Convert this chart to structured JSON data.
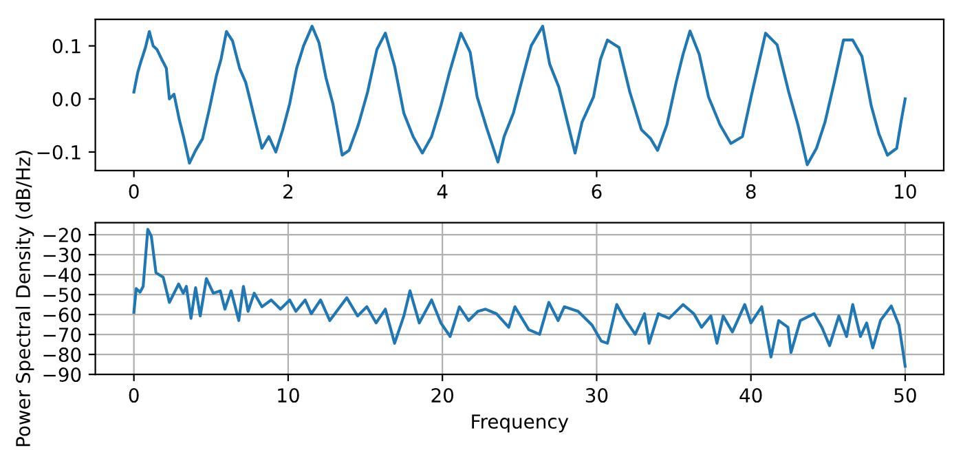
{
  "chart_data": [
    {
      "type": "line",
      "x": [
        0,
        0.05,
        0.09,
        0.15,
        0.2,
        0.25,
        0.3,
        0.36,
        0.42,
        0.46,
        0.52,
        0.59,
        0.65,
        0.72,
        0.8,
        0.89,
        0.98,
        1.07,
        1.13,
        1.2,
        1.28,
        1.37,
        1.45,
        1.51,
        1.57,
        1.66,
        1.75,
        1.84,
        1.93,
        2.02,
        2.11,
        2.2,
        2.31,
        2.4,
        2.49,
        2.58,
        2.7,
        2.79,
        2.91,
        3.03,
        3.15,
        3.26,
        3.38,
        3.5,
        3.62,
        3.74,
        3.86,
        3.98,
        4.09,
        4.24,
        4.36,
        4.45,
        4.57,
        4.72,
        4.8,
        4.92,
        5.04,
        5.15,
        5.3,
        5.39,
        5.51,
        5.63,
        5.72,
        5.81,
        5.96,
        6.05,
        6.14,
        6.29,
        6.43,
        6.58,
        6.7,
        6.79,
        6.91,
        7.03,
        7.12,
        7.21,
        7.33,
        7.45,
        7.6,
        7.74,
        7.89,
        8.01,
        8.1,
        8.19,
        8.34,
        8.49,
        8.61,
        8.73,
        8.85,
        8.96,
        9.08,
        9.2,
        9.32,
        9.44,
        9.56,
        9.66,
        9.77,
        9.89,
        9.95,
        10.0
      ],
      "series": [
        {
          "color": "#1f77b4",
          "values": [
            0.013,
            0.05,
            0.07,
            0.097,
            0.127,
            0.1,
            0.093,
            0.075,
            0.058,
            0.0,
            0.009,
            -0.04,
            -0.075,
            -0.121,
            -0.097,
            -0.075,
            -0.018,
            0.044,
            0.075,
            0.127,
            0.109,
            0.058,
            0.031,
            -0.004,
            -0.04,
            -0.093,
            -0.071,
            -0.1,
            -0.058,
            -0.009,
            0.058,
            0.1,
            0.137,
            0.106,
            0.04,
            -0.009,
            -0.106,
            -0.097,
            -0.049,
            0.013,
            0.093,
            0.124,
            0.062,
            -0.027,
            -0.071,
            -0.102,
            -0.071,
            -0.013,
            0.049,
            0.124,
            0.088,
            0.004,
            -0.053,
            -0.119,
            -0.071,
            -0.027,
            0.04,
            0.1,
            0.137,
            0.066,
            0.022,
            -0.049,
            -0.102,
            -0.044,
            0.004,
            0.075,
            0.111,
            0.097,
            0.013,
            -0.058,
            -0.075,
            -0.097,
            -0.049,
            0.031,
            0.084,
            0.128,
            0.084,
            0.004,
            -0.049,
            -0.084,
            -0.071,
            0.009,
            0.066,
            0.124,
            0.102,
            0.013,
            -0.049,
            -0.124,
            -0.093,
            -0.044,
            0.031,
            0.111,
            0.111,
            0.08,
            -0.013,
            -0.066,
            -0.106,
            -0.093,
            -0.04,
            0.0
          ]
        }
      ],
      "xlim": [
        -0.5,
        10.5
      ],
      "ylim": [
        -0.135,
        0.15
      ],
      "xticks": [
        0,
        2,
        4,
        6,
        8,
        10
      ],
      "yticks": [
        {
          "value": -0.1,
          "label": "−0.1"
        },
        {
          "value": 0.0,
          "label": "0.0"
        },
        {
          "value": 0.1,
          "label": "0.1"
        }
      ],
      "grid": false
    },
    {
      "type": "line",
      "xlabel": "Frequency",
      "ylabel": "Power Spectral Density (dB/Hz)",
      "x": [
        0,
        0.15,
        0.4,
        0.6,
        0.9,
        1.13,
        1.43,
        1.9,
        2.3,
        2.9,
        3.2,
        3.4,
        3.7,
        4.0,
        4.3,
        4.7,
        5.15,
        5.6,
        5.9,
        6.3,
        6.8,
        7.1,
        7.4,
        7.8,
        8.3,
        8.9,
        9.5,
        10.1,
        10.5,
        11.1,
        11.5,
        12.1,
        12.7,
        13.8,
        14.5,
        15.1,
        15.7,
        16.3,
        16.9,
        17.5,
        17.9,
        18.5,
        19.3,
        19.9,
        20.5,
        21.1,
        21.7,
        22.3,
        22.8,
        23.5,
        24.3,
        24.7,
        25.6,
        26.3,
        26.9,
        27.5,
        27.9,
        28.8,
        29.7,
        30.3,
        30.7,
        31.3,
        31.8,
        32.5,
        33.1,
        33.4,
        34,
        34.7,
        35.6,
        36.3,
        36.8,
        37.4,
        37.8,
        38.2,
        38.8,
        39.6,
        40.0,
        40.7,
        41.3,
        41.8,
        42.4,
        42.6,
        43.2,
        44.1,
        44.6,
        45.1,
        45.7,
        46.2,
        46.6,
        47.1,
        47.5,
        47.9,
        48.4,
        49.1,
        49.6,
        50
      ],
      "series": [
        {
          "color": "#1f77b4",
          "values": [
            -58.9,
            -47,
            -48.8,
            -45.9,
            -17.3,
            -20.7,
            -39,
            -41.3,
            -53.9,
            -44.7,
            -49.3,
            -45.9,
            -61.9,
            -46.5,
            -60.7,
            -42,
            -49.3,
            -48.1,
            -57.3,
            -48.1,
            -63,
            -45.9,
            -58.4,
            -49.3,
            -56.1,
            -52.7,
            -57.3,
            -52.7,
            -58.4,
            -52.7,
            -59.6,
            -52.7,
            -63,
            -51.6,
            -60.7,
            -56.1,
            -64.2,
            -57.3,
            -74.4,
            -60.7,
            -48.1,
            -64.2,
            -52.7,
            -64.2,
            -71,
            -56.1,
            -63,
            -58.4,
            -57.3,
            -59.6,
            -66.4,
            -56.1,
            -67.6,
            -69.9,
            -53.9,
            -63,
            -56.1,
            -58.4,
            -65.3,
            -73.3,
            -74.4,
            -55,
            -61.9,
            -69.9,
            -59.6,
            -74.4,
            -59.6,
            -61.9,
            -55,
            -59.6,
            -66.4,
            -60.7,
            -74.4,
            -60.7,
            -68.7,
            -55,
            -64.2,
            -56.1,
            -81.3,
            -63,
            -66.4,
            -79,
            -63,
            -59.6,
            -66.4,
            -75.6,
            -60.7,
            -71,
            -55,
            -71,
            -64.2,
            -76.7,
            -63,
            -55.7,
            -65.3,
            -85.9
          ]
        }
      ],
      "xlim": [
        -2.5,
        52.5
      ],
      "ylim": [
        -90,
        -14
      ],
      "xticks": [
        0,
        10,
        20,
        30,
        40,
        50
      ],
      "yticks": [
        {
          "value": -90,
          "label": "−90"
        },
        {
          "value": -80,
          "label": "−80"
        },
        {
          "value": -70,
          "label": "−70"
        },
        {
          "value": -60,
          "label": "−60"
        },
        {
          "value": -50,
          "label": "−50"
        },
        {
          "value": -40,
          "label": "−40"
        },
        {
          "value": -30,
          "label": "−30"
        },
        {
          "value": -20,
          "label": "−20"
        }
      ],
      "grid": true
    }
  ]
}
